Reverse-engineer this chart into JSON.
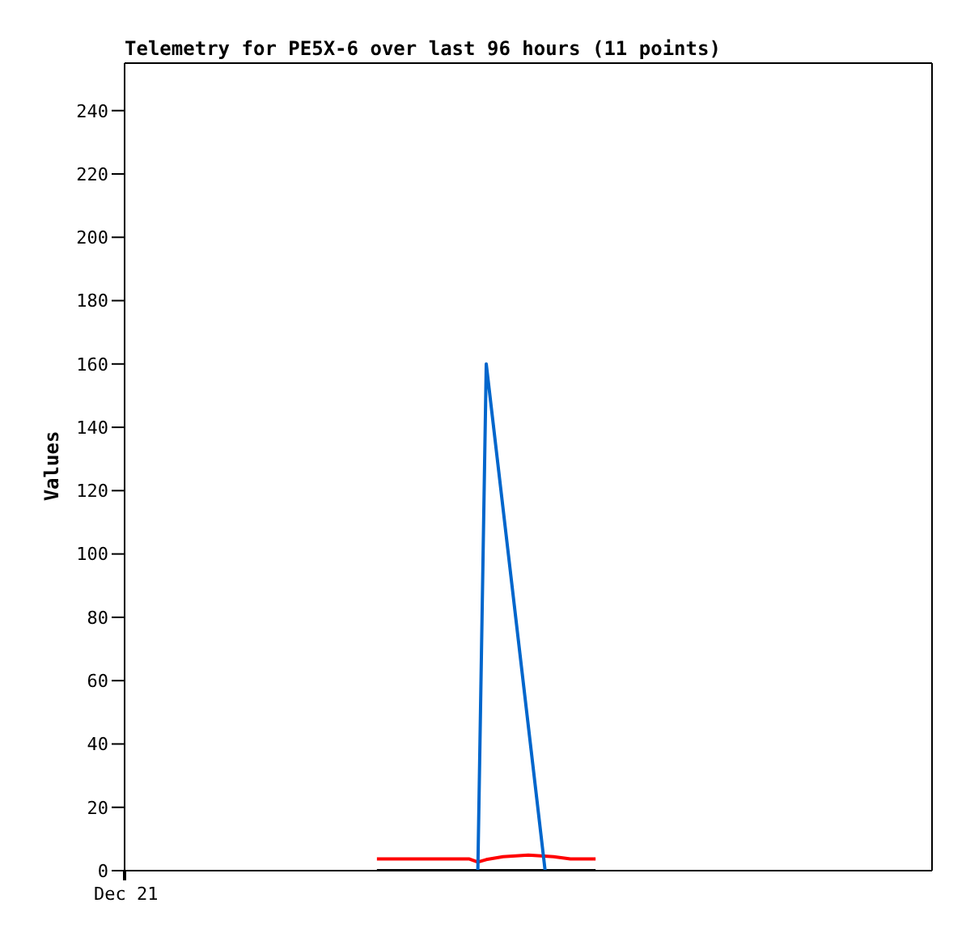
{
  "chart_data": {
    "type": "line",
    "title": "Telemetry for PE5X-6 over last 96 hours (11 points)",
    "ylabel": "Values",
    "annotations": [
      "Dec 21"
    ],
    "categories": [
      null,
      null,
      null,
      null,
      null,
      null,
      null,
      null,
      null,
      null,
      null,
      null,
      null,
      null,
      null,
      null,
      null,
      null,
      null,
      null,
      null,
      null,
      null,
      null,
      null,
      null,
      null,
      null,
      null,
      null,
      null,
      null,
      null,
      null,
      null,
      null,
      null,
      null,
      null,
      null,
      null,
      null,
      null,
      null,
      null,
      null,
      null,
      null,
      null,
      null,
      null,
      null,
      null,
      null,
      null,
      null,
      null,
      null,
      null,
      null,
      null,
      null,
      null,
      null,
      null,
      null,
      null,
      null,
      null,
      null,
      null,
      null,
      null,
      null,
      null,
      null,
      null,
      null,
      null,
      null,
      null,
      null,
      null,
      null,
      null,
      null,
      null,
      null,
      null,
      null,
      null,
      null,
      null,
      null,
      null,
      null,
      null
    ],
    "ylim": [
      0,
      255
    ],
    "yticks": [
      0,
      20,
      40,
      60,
      80,
      100,
      120,
      140,
      160,
      180,
      200,
      220,
      240
    ],
    "marker": "none",
    "line_style": "solid",
    "series": [
      {
        "color": "#ff0000",
        "values": [
          null,
          null,
          null,
          null,
          null,
          null,
          null,
          null,
          null,
          null,
          null,
          null,
          null,
          null,
          null,
          null,
          null,
          null,
          null,
          null,
          null,
          null,
          null,
          null,
          null,
          null,
          null,
          null,
          null,
          null,
          3.7,
          null,
          null,
          null,
          null,
          null,
          null,
          null,
          null,
          null,
          null,
          3.7,
          2.7,
          3.5,
          null,
          4.4,
          null,
          null,
          4.9,
          null,
          null,
          4.4,
          null,
          3.7,
          null,
          null,
          3.7,
          null,
          null,
          null,
          null,
          null,
          null,
          null,
          null,
          null,
          null,
          null,
          null,
          null,
          null,
          null,
          null,
          null,
          null,
          null,
          null,
          null,
          null,
          null,
          null,
          null,
          null,
          null,
          null,
          null,
          null,
          null,
          null,
          null,
          null,
          null,
          null,
          null,
          null,
          null,
          null
        ]
      },
      {
        "color": "#000000",
        "values": [
          null,
          null,
          null,
          null,
          null,
          null,
          null,
          null,
          null,
          null,
          null,
          null,
          null,
          null,
          null,
          null,
          null,
          null,
          null,
          null,
          null,
          null,
          null,
          null,
          null,
          null,
          null,
          null,
          null,
          null,
          0,
          null,
          null,
          null,
          null,
          null,
          null,
          null,
          null,
          null,
          null,
          null,
          null,
          null,
          null,
          null,
          null,
          null,
          null,
          null,
          null,
          null,
          null,
          null,
          null,
          null,
          0,
          null,
          null,
          null,
          null,
          null,
          null,
          null,
          null,
          null,
          null,
          null,
          null,
          null,
          null,
          null,
          null,
          null,
          null,
          null,
          null,
          null,
          null,
          null,
          null,
          null,
          null,
          null,
          null,
          null,
          null,
          null,
          null,
          null,
          null,
          null,
          null,
          null,
          null,
          null,
          null
        ]
      },
      {
        "color": "#0066cc",
        "values": [
          null,
          null,
          null,
          null,
          null,
          null,
          null,
          null,
          null,
          null,
          null,
          null,
          null,
          null,
          null,
          null,
          null,
          null,
          null,
          null,
          null,
          null,
          null,
          null,
          null,
          null,
          null,
          null,
          null,
          null,
          null,
          null,
          null,
          null,
          null,
          null,
          null,
          null,
          null,
          null,
          null,
          null,
          0,
          160,
          null,
          null,
          null,
          null,
          null,
          null,
          0,
          null,
          null,
          null,
          null,
          null,
          null,
          null,
          null,
          null,
          null,
          null,
          null,
          null,
          null,
          null,
          null,
          null,
          null,
          null,
          null,
          null,
          null,
          null,
          null,
          null,
          null,
          null,
          null,
          null,
          null,
          null,
          null,
          null,
          null,
          null,
          null,
          null,
          null,
          null,
          null,
          null,
          null,
          null,
          null,
          null,
          null
        ]
      }
    ]
  }
}
